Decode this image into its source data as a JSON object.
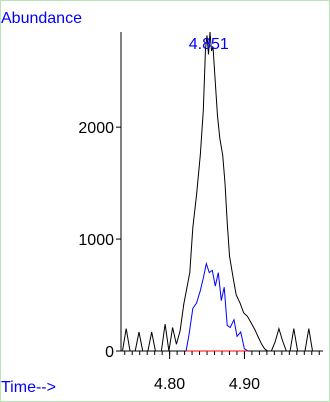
{
  "chart_data": {
    "type": "line",
    "ylabel": "Abundance",
    "xlabel": "Time-->",
    "peak_label": "4.851",
    "peak_x": 4.851,
    "xlim": [
      4.735,
      5.005
    ],
    "ylim": [
      0,
      2850
    ],
    "x_ticks": [
      4.8,
      4.9
    ],
    "x_tick_labels": [
      "4.80",
      "4.90"
    ],
    "x_minor_step": 0.01,
    "y_ticks": [
      0,
      1000,
      2000
    ],
    "y_tick_labels": [
      "0",
      "1000",
      "2000"
    ],
    "grid": false,
    "colors": {
      "frame_border": "#b6e6b6",
      "label_text": "#0000ff",
      "baseline": "#ff0000"
    },
    "series": [
      {
        "color": "#000000",
        "x": [
          4.737,
          4.742,
          4.747,
          4.754,
          4.759,
          4.764,
          4.771,
          4.776,
          4.781,
          4.789,
          4.794,
          4.799,
          4.804,
          4.809,
          4.814,
          4.819,
          4.823,
          4.827,
          4.831,
          4.836,
          4.841,
          4.845,
          4.848,
          4.85,
          4.852,
          4.854,
          4.856,
          4.858,
          4.861,
          4.864,
          4.867,
          4.871,
          4.874,
          4.877,
          4.88,
          4.885,
          4.889,
          4.894,
          4.899,
          4.904,
          4.909,
          4.914,
          4.918,
          4.923,
          4.927,
          4.931,
          4.936,
          4.941,
          4.946,
          4.951,
          4.956,
          4.961,
          4.966,
          4.971,
          4.976,
          4.981,
          4.986,
          4.991,
          4.995
        ],
        "y": [
          0,
          200,
          0,
          0,
          170,
          0,
          0,
          170,
          0,
          0,
          240,
          0,
          210,
          60,
          180,
          420,
          560,
          700,
          1100,
          1400,
          1750,
          2150,
          2700,
          2820,
          2650,
          2850,
          2680,
          2720,
          2400,
          2100,
          1900,
          1750,
          1500,
          1150,
          850,
          650,
          500,
          430,
          340,
          310,
          250,
          190,
          130,
          60,
          20,
          0,
          0,
          80,
          200,
          90,
          0,
          0,
          200,
          0,
          0,
          0,
          200,
          0,
          0
        ]
      },
      {
        "color": "#0000ff",
        "x": [
          4.822,
          4.826,
          4.831,
          4.836,
          4.841,
          4.845,
          4.849,
          4.853,
          4.857,
          4.861,
          4.865,
          4.869,
          4.873,
          4.877,
          4.881,
          4.886,
          4.89,
          4.895,
          4.9,
          4.905
        ],
        "y": [
          0,
          150,
          380,
          430,
          540,
          650,
          780,
          700,
          720,
          580,
          700,
          450,
          570,
          230,
          210,
          280,
          130,
          170,
          20,
          0
        ]
      },
      {
        "color": "#ff0000",
        "x": [
          4.822,
          4.905
        ],
        "y": [
          0,
          0
        ]
      }
    ]
  }
}
